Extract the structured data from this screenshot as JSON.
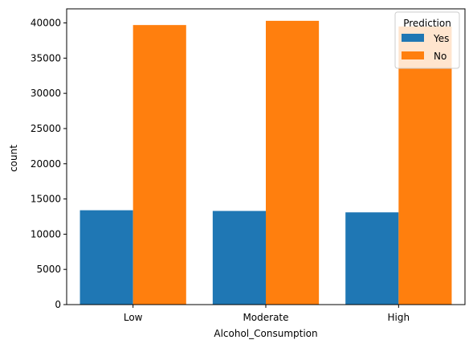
{
  "chart_data": {
    "type": "bar",
    "categories": [
      "Low",
      "Moderate",
      "High"
    ],
    "series": [
      {
        "name": "Yes",
        "color": "#1f77b4",
        "values": [
          13400,
          13300,
          13100
        ]
      },
      {
        "name": "No",
        "color": "#ff7f0e",
        "values": [
          39700,
          40300,
          39500
        ]
      }
    ],
    "xlabel": "Alcohol_Consumption",
    "ylabel": "count",
    "ylim": [
      0,
      42000
    ],
    "yticks": [
      0,
      5000,
      10000,
      15000,
      20000,
      25000,
      30000,
      35000,
      40000
    ],
    "ytick_labels": [
      "0",
      "5000",
      "10000",
      "15000",
      "20000",
      "25000",
      "30000",
      "35000",
      "40000"
    ],
    "legend": {
      "title": "Prediction",
      "placement": "top-right"
    },
    "grid": false
  }
}
